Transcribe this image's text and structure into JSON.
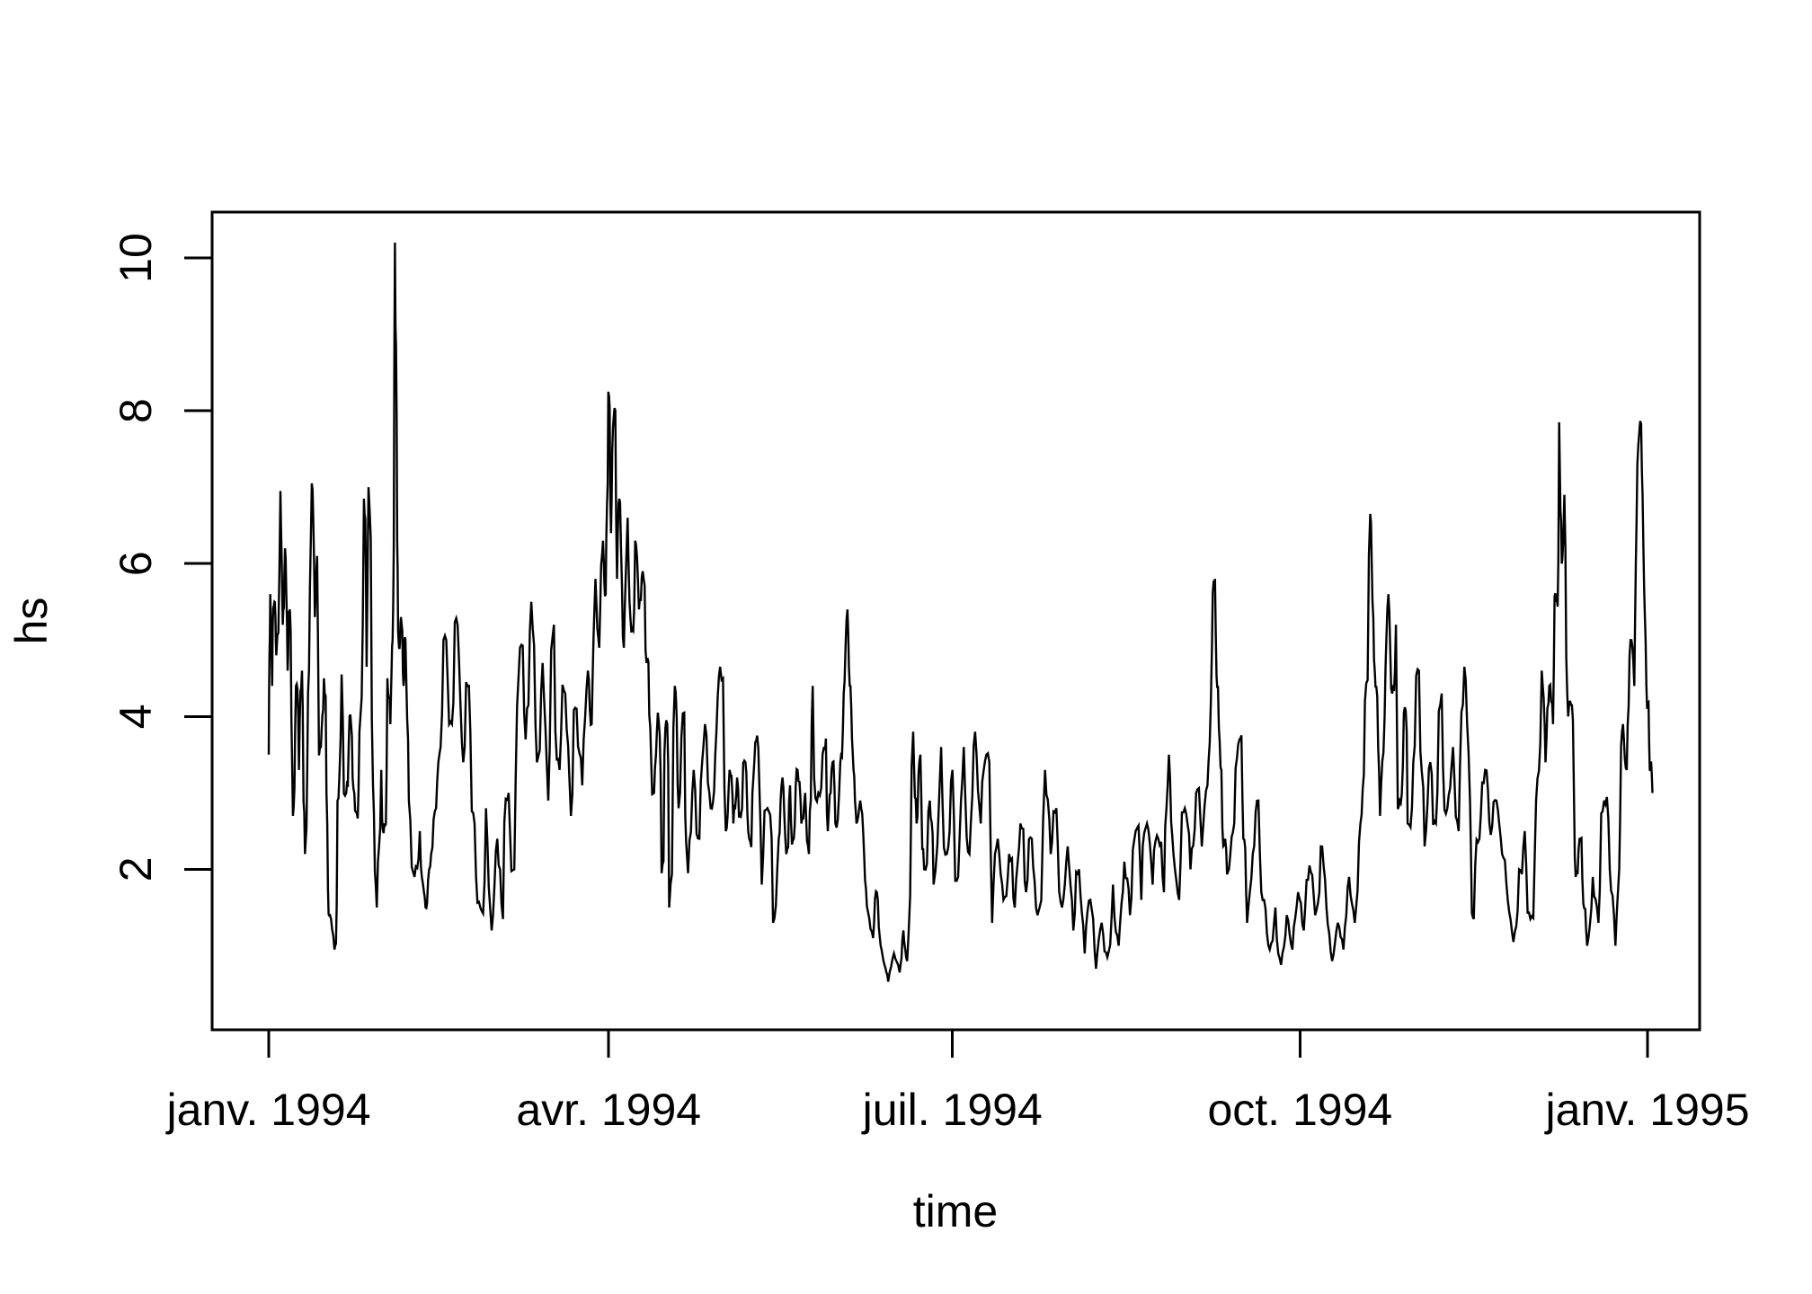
{
  "figure": {
    "background": "#ffffff",
    "foreground": "#000000"
  },
  "chart_data": {
    "type": "line",
    "title": "",
    "xlabel": "time",
    "ylabel": "hs",
    "grid": false,
    "legend": null,
    "line_color": "#000000",
    "x_axis": {
      "tick_labels": [
        "janv. 1994",
        "avr. 1994",
        "juil. 1994",
        "oct. 1994",
        "janv. 1995"
      ],
      "tick_positions_days": [
        0,
        90,
        181,
        273,
        365
      ],
      "units": "days since 1994-01-01"
    },
    "y_axis": {
      "tick_labels": [
        "2",
        "4",
        "6",
        "8",
        "10"
      ],
      "tick_values": [
        2,
        4,
        6,
        8,
        10
      ],
      "shown_range": [
        -0.1,
        10.6
      ]
    },
    "data_range": {
      "y_min": 0.45,
      "y_max": 10.2,
      "x_days": [
        0,
        366.3
      ]
    },
    "texture": {
      "subdivisions": 2,
      "seed": 42,
      "base_jitter": 0.12,
      "slope_jitter": 0.5,
      "pass_decay": 0.55
    },
    "series": [
      {
        "name": "hs",
        "points_day_value": [
          [
            0,
            3.5
          ],
          [
            0.4,
            5.6
          ],
          [
            0.9,
            4.4
          ],
          [
            1.5,
            5.5
          ],
          [
            2,
            4.8
          ],
          [
            3.1,
            6.95
          ],
          [
            3.7,
            5.2
          ],
          [
            4.3,
            6.2
          ],
          [
            5,
            4.6
          ],
          [
            5.6,
            5.4
          ],
          [
            6.4,
            2.7
          ],
          [
            7.2,
            4.4
          ],
          [
            8,
            3.3
          ],
          [
            8.8,
            4.6
          ],
          [
            9.6,
            2.2
          ],
          [
            10.4,
            4.3
          ],
          [
            11.4,
            7.05
          ],
          [
            12.2,
            5.3
          ],
          [
            12.8,
            6.1
          ],
          [
            13.8,
            3.6
          ],
          [
            14.6,
            4.5
          ],
          [
            15.5,
            2.6
          ],
          [
            16.2,
            1.4
          ],
          [
            17.4,
            0.95
          ],
          [
            18.2,
            2.9
          ],
          [
            19.3,
            4.55
          ],
          [
            20.5,
            3.0
          ],
          [
            21.4,
            4.0
          ],
          [
            22.2,
            3.2
          ],
          [
            23.1,
            2.75
          ],
          [
            24,
            3.8
          ],
          [
            25.2,
            6.85
          ],
          [
            25.9,
            4.65
          ],
          [
            26.4,
            7.0
          ],
          [
            27.6,
            3.1
          ],
          [
            28.6,
            1.5
          ],
          [
            29.8,
            3.3
          ],
          [
            30.6,
            2.6
          ],
          [
            31.4,
            4.5
          ],
          [
            32.2,
            3.9
          ],
          [
            32.8,
            5.0
          ],
          [
            33.4,
            10.2
          ],
          [
            34,
            6.3
          ],
          [
            34.5,
            4.9
          ],
          [
            35,
            5.3
          ],
          [
            35.7,
            4.4
          ],
          [
            36.2,
            5.0
          ],
          [
            37.1,
            2.9
          ],
          [
            38.6,
            1.9
          ],
          [
            40,
            2.5
          ],
          [
            41.1,
            1.7
          ],
          [
            41.9,
            1.55
          ],
          [
            43,
            2.2
          ],
          [
            44.3,
            2.8
          ],
          [
            45.5,
            3.6
          ],
          [
            47,
            5.0
          ],
          [
            48.5,
            3.9
          ],
          [
            50,
            5.2
          ],
          [
            51.5,
            3.4
          ],
          [
            53,
            4.4
          ],
          [
            54.5,
            2.6
          ],
          [
            56,
            1.5
          ],
          [
            57.5,
            2.8
          ],
          [
            59,
            1.2
          ],
          [
            60.5,
            2.4
          ],
          [
            62,
            1.35
          ],
          [
            63.5,
            3.0
          ],
          [
            65,
            2.0
          ],
          [
            66.5,
            4.9
          ],
          [
            68,
            3.7
          ],
          [
            69.5,
            5.5
          ],
          [
            71,
            3.4
          ],
          [
            72.5,
            4.7
          ],
          [
            74,
            2.9
          ],
          [
            75.5,
            5.2
          ],
          [
            77,
            3.3
          ],
          [
            78.5,
            4.3
          ],
          [
            80,
            2.7
          ],
          [
            81.5,
            4.1
          ],
          [
            83,
            3.1
          ],
          [
            84.5,
            4.6
          ],
          [
            85.5,
            3.9
          ],
          [
            86.5,
            5.8
          ],
          [
            87.5,
            4.9
          ],
          [
            88.5,
            6.3
          ],
          [
            89.2,
            5.6
          ],
          [
            89.9,
            8.25
          ],
          [
            90.6,
            6.4
          ],
          [
            91.3,
            7.9
          ],
          [
            92.2,
            5.8
          ],
          [
            93,
            6.8
          ],
          [
            94,
            4.9
          ],
          [
            95,
            6.6
          ],
          [
            96,
            5.1
          ],
          [
            97,
            6.3
          ],
          [
            98,
            5.4
          ],
          [
            99,
            5.9
          ],
          [
            100,
            4.7
          ],
          [
            101,
            3.85
          ],
          [
            102,
            3.0
          ],
          [
            103,
            4.05
          ],
          [
            104,
            1.95
          ],
          [
            105,
            3.85
          ],
          [
            106,
            1.5
          ],
          [
            107.5,
            4.4
          ],
          [
            108.5,
            2.8
          ],
          [
            110,
            4.05
          ],
          [
            111,
            1.95
          ],
          [
            112.5,
            3.3
          ],
          [
            114,
            2.4
          ],
          [
            115.5,
            3.9
          ],
          [
            117,
            2.8
          ],
          [
            118.2,
            3.5
          ],
          [
            119.5,
            4.65
          ],
          [
            121,
            2.5
          ],
          [
            122,
            3.3
          ],
          [
            123,
            2.6
          ],
          [
            124,
            3.2
          ],
          [
            125,
            2.7
          ],
          [
            126.2,
            3.4
          ],
          [
            127.2,
            2.4
          ],
          [
            128.3,
            3.2
          ],
          [
            129.3,
            3.75
          ],
          [
            130.5,
            1.8
          ],
          [
            132,
            2.8
          ],
          [
            133.5,
            1.3
          ],
          [
            135,
            2.4
          ],
          [
            136,
            3.2
          ],
          [
            137,
            2.2
          ],
          [
            138,
            3.1
          ],
          [
            139,
            2.4
          ],
          [
            140,
            3.3
          ],
          [
            141,
            2.6
          ],
          [
            142,
            3.0
          ],
          [
            143,
            2.2
          ],
          [
            144,
            4.4
          ],
          [
            145.5,
            3.0
          ],
          [
            147,
            3.6
          ],
          [
            148,
            2.5
          ],
          [
            149,
            3.3
          ],
          [
            150,
            2.6
          ],
          [
            151.3,
            3.4
          ],
          [
            152.2,
            4.3
          ],
          [
            153.2,
            5.4
          ],
          [
            154,
            4.4
          ],
          [
            154.8,
            3.3
          ],
          [
            155.6,
            2.6
          ],
          [
            156.6,
            2.9
          ],
          [
            157.6,
            2.2
          ],
          [
            158.6,
            1.45
          ],
          [
            160,
            1.1
          ],
          [
            161,
            1.7
          ],
          [
            162,
            1.0
          ],
          [
            163,
            0.75
          ],
          [
            164,
            0.53
          ],
          [
            165.5,
            0.9
          ],
          [
            167,
            0.65
          ],
          [
            168,
            1.2
          ],
          [
            169,
            0.8
          ],
          [
            170.6,
            3.8
          ],
          [
            171.5,
            2.6
          ],
          [
            172.5,
            3.5
          ],
          [
            173.5,
            2.0
          ],
          [
            175,
            2.9
          ],
          [
            176,
            1.8
          ],
          [
            178,
            3.6
          ],
          [
            179.5,
            2.2
          ],
          [
            181,
            3.3
          ],
          [
            182.5,
            1.9
          ],
          [
            184,
            3.6
          ],
          [
            185.5,
            2.2
          ],
          [
            187,
            3.8
          ],
          [
            188.5,
            2.6
          ],
          [
            190,
            3.5
          ],
          [
            191.5,
            1.3
          ],
          [
            193,
            2.4
          ],
          [
            194.5,
            1.6
          ],
          [
            196,
            2.2
          ],
          [
            197.5,
            1.5
          ],
          [
            199,
            2.6
          ],
          [
            200.5,
            1.7
          ],
          [
            202,
            2.4
          ],
          [
            203.5,
            1.4
          ],
          [
            205.5,
            3.3
          ],
          [
            207,
            2.2
          ],
          [
            208.5,
            2.8
          ],
          [
            210,
            1.5
          ],
          [
            211.5,
            2.3
          ],
          [
            213,
            1.2
          ],
          [
            214.5,
            2.0
          ],
          [
            216,
            0.9
          ],
          [
            217.5,
            1.6
          ],
          [
            219,
            0.7
          ],
          [
            220.5,
            1.3
          ],
          [
            222,
            0.85
          ],
          [
            223.5,
            1.8
          ],
          [
            225,
            1.0
          ],
          [
            226.5,
            2.1
          ],
          [
            228,
            1.4
          ],
          [
            229.5,
            2.5
          ],
          [
            231,
            1.6
          ],
          [
            232.5,
            2.6
          ],
          [
            234,
            1.8
          ],
          [
            235.5,
            2.4
          ],
          [
            237,
            1.7
          ],
          [
            238.3,
            3.5
          ],
          [
            239.5,
            2.2
          ],
          [
            241,
            1.6
          ],
          [
            242.5,
            2.8
          ],
          [
            244,
            2.0
          ],
          [
            245.5,
            3.0
          ],
          [
            247,
            2.3
          ],
          [
            248.5,
            3.1
          ],
          [
            249.7,
            4.9
          ],
          [
            250.5,
            5.8
          ],
          [
            251.3,
            4.4
          ],
          [
            252.2,
            3.3
          ],
          [
            253.2,
            2.4
          ],
          [
            254.2,
            2.0
          ],
          [
            255.6,
            2.6
          ],
          [
            257,
            3.7
          ],
          [
            258,
            2.4
          ],
          [
            259,
            1.3
          ],
          [
            260.5,
            2.2
          ],
          [
            262,
            2.9
          ],
          [
            263.5,
            1.6
          ],
          [
            265,
            0.95
          ],
          [
            266.5,
            1.5
          ],
          [
            268,
            0.75
          ],
          [
            269.5,
            1.4
          ],
          [
            271,
            0.95
          ],
          [
            272.5,
            1.7
          ],
          [
            274,
            1.2
          ],
          [
            275.5,
            2.05
          ],
          [
            277,
            1.4
          ],
          [
            278.5,
            2.3
          ],
          [
            280,
            1.5
          ],
          [
            281.5,
            0.8
          ],
          [
            283,
            1.3
          ],
          [
            284.5,
            0.95
          ],
          [
            286,
            1.9
          ],
          [
            287.5,
            1.3
          ],
          [
            289,
            2.6
          ],
          [
            290.2,
            4.2
          ],
          [
            291.6,
            6.65
          ],
          [
            292.4,
            5.3
          ],
          [
            293.2,
            4.4
          ],
          [
            294.2,
            2.7
          ],
          [
            295.4,
            4.0
          ],
          [
            296.4,
            5.6
          ],
          [
            297.4,
            4.3
          ],
          [
            298.4,
            5.2
          ],
          [
            299.4,
            2.9
          ],
          [
            300.5,
            4.05
          ],
          [
            301.5,
            2.6
          ],
          [
            303,
            3.4
          ],
          [
            304.5,
            4.6
          ],
          [
            306,
            2.3
          ],
          [
            307.5,
            3.4
          ],
          [
            309,
            2.6
          ],
          [
            310.5,
            4.3
          ],
          [
            312,
            2.8
          ],
          [
            313.5,
            3.6
          ],
          [
            315,
            2.5
          ],
          [
            316.5,
            4.65
          ],
          [
            318,
            2.9
          ],
          [
            319,
            1.35
          ],
          [
            320.5,
            2.4
          ],
          [
            322,
            3.3
          ],
          [
            323.5,
            2.45
          ],
          [
            325,
            2.9
          ],
          [
            326.5,
            2.2
          ],
          [
            328,
            1.6
          ],
          [
            329.5,
            1.05
          ],
          [
            331,
            2.0
          ],
          [
            332.5,
            2.5
          ],
          [
            334,
            1.35
          ],
          [
            335.5,
            2.9
          ],
          [
            337,
            4.6
          ],
          [
            338,
            3.4
          ],
          [
            339,
            4.4
          ],
          [
            340,
            3.9
          ],
          [
            340.8,
            5.5
          ],
          [
            341.6,
            7.85
          ],
          [
            342.3,
            6.0
          ],
          [
            343,
            6.9
          ],
          [
            344,
            4.0
          ],
          [
            345,
            4.15
          ],
          [
            346,
            1.9
          ],
          [
            347,
            2.4
          ],
          [
            348,
            1.55
          ],
          [
            349,
            1.0
          ],
          [
            350.5,
            1.9
          ],
          [
            352,
            1.3
          ],
          [
            353.5,
            2.9
          ],
          [
            355,
            2.0
          ],
          [
            356.5,
            1.0
          ],
          [
            357.5,
            2.0
          ],
          [
            358.5,
            3.9
          ],
          [
            359.5,
            3.3
          ],
          [
            360.5,
            5.0
          ],
          [
            361.5,
            4.4
          ],
          [
            362.3,
            7.3
          ],
          [
            363.3,
            7.83
          ],
          [
            364.1,
            5.7
          ],
          [
            364.9,
            4.1
          ],
          [
            365.6,
            3.3
          ],
          [
            366.3,
            3.0
          ]
        ]
      }
    ]
  }
}
